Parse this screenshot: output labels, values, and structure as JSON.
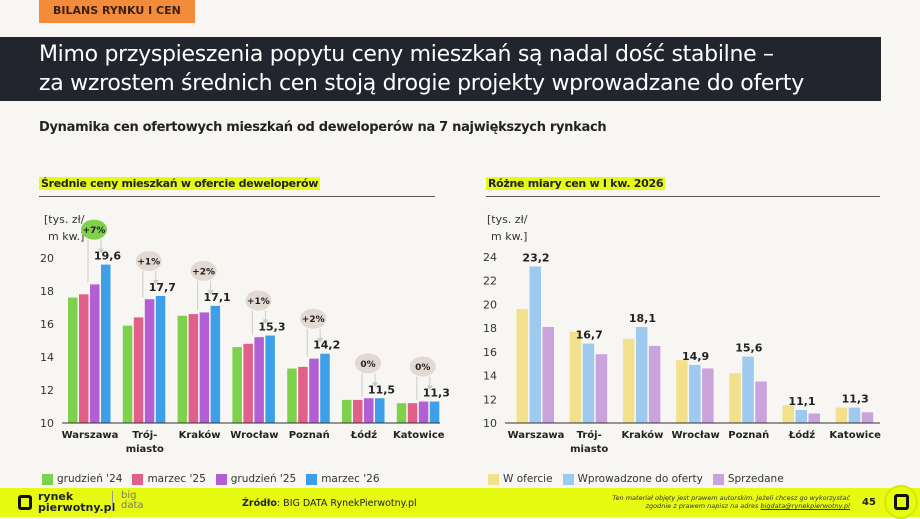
{
  "tag": "BILANS RYNKU I CEN",
  "title_line1": "Mimo przyspieszenia popytu ceny mieszkań są nadal dość stabilne –",
  "title_line2": "za wzrostem średnich cen stoją drogie projekty wprowadzane do oferty",
  "subtitle": "Dynamika cen ofertowych mieszkań od deweloperów na 7 największych rynkach",
  "footer": {
    "logo": "rynek pierwotny.pl",
    "logo2": "big data",
    "source_label": "Źródło",
    "source": ": BIG DATA RynekPierwotny.pl",
    "copyright1": "Ten materiał objęty jest prawem autorskim. Jeżeli chcesz go wykorzystać",
    "copyright2": "zgodnie z prawem napisz na adres ",
    "email": "bigdata@rynekpierwotny.pl",
    "page": "45"
  },
  "chart_data": [
    {
      "type": "bar",
      "title": "Średnie ceny mieszkań w ofercie deweloperów",
      "ylabel": "[tys. zł/ m kw.]",
      "ylim": [
        10,
        20
      ],
      "yticks": [
        10,
        12,
        14,
        16,
        18,
        20
      ],
      "categories": [
        "Warszawa",
        "Trój-\nmiasto",
        "Kraków",
        "Wrocław",
        "Poznań",
        "Łódź",
        "Katowice"
      ],
      "series": [
        {
          "name": "grudzień '24",
          "color": "#7ed24b",
          "values": [
            17.6,
            15.9,
            16.5,
            14.6,
            13.3,
            11.4,
            11.2
          ]
        },
        {
          "name": "marzec '25",
          "color": "#e0608a",
          "values": [
            17.8,
            16.4,
            16.6,
            14.8,
            13.4,
            11.4,
            11.2
          ]
        },
        {
          "name": "grudzień '25",
          "color": "#b25fd6",
          "values": [
            18.4,
            17.5,
            16.7,
            15.2,
            13.9,
            11.5,
            11.3
          ]
        },
        {
          "name": "marzec '26",
          "color": "#3c9fe8",
          "values": [
            19.6,
            17.7,
            17.1,
            15.3,
            14.2,
            11.5,
            11.3
          ]
        }
      ],
      "data_labels": [
        "19,6",
        "17,7",
        "17,1",
        "15,3",
        "14,2",
        "11,5",
        "11,3"
      ],
      "changes": [
        "+7%",
        "+1%",
        "+2%",
        "+1%",
        "+2%",
        "0%",
        "0%"
      ],
      "legend": "bottom"
    },
    {
      "type": "bar",
      "title": "Różne miary cen w I kw. 2026",
      "ylabel": "[tys. zł/ m kw.]",
      "ylim": [
        10,
        24
      ],
      "yticks": [
        10,
        12,
        14,
        16,
        18,
        20,
        22,
        24
      ],
      "categories": [
        "Warszawa",
        "Trój-\nmiasto",
        "Kraków",
        "Wrocław",
        "Poznań",
        "Łódź",
        "Katowice"
      ],
      "series": [
        {
          "name": "W ofercie",
          "color": "#f3e08c",
          "values": [
            19.6,
            17.7,
            17.1,
            15.3,
            14.2,
            11.5,
            11.3
          ]
        },
        {
          "name": "Wprowadzone do oferty",
          "color": "#9dcaee",
          "values": [
            23.2,
            16.7,
            18.1,
            14.9,
            15.6,
            11.1,
            11.3
          ]
        },
        {
          "name": "Sprzedane",
          "color": "#caa3dd",
          "values": [
            18.1,
            15.8,
            16.5,
            14.6,
            13.5,
            10.8,
            10.9
          ]
        }
      ],
      "data_labels": [
        "23,2",
        "16,7",
        "18,1",
        "14,9",
        "15,6",
        "11,1",
        "11,3"
      ],
      "legend": "bottom"
    }
  ]
}
